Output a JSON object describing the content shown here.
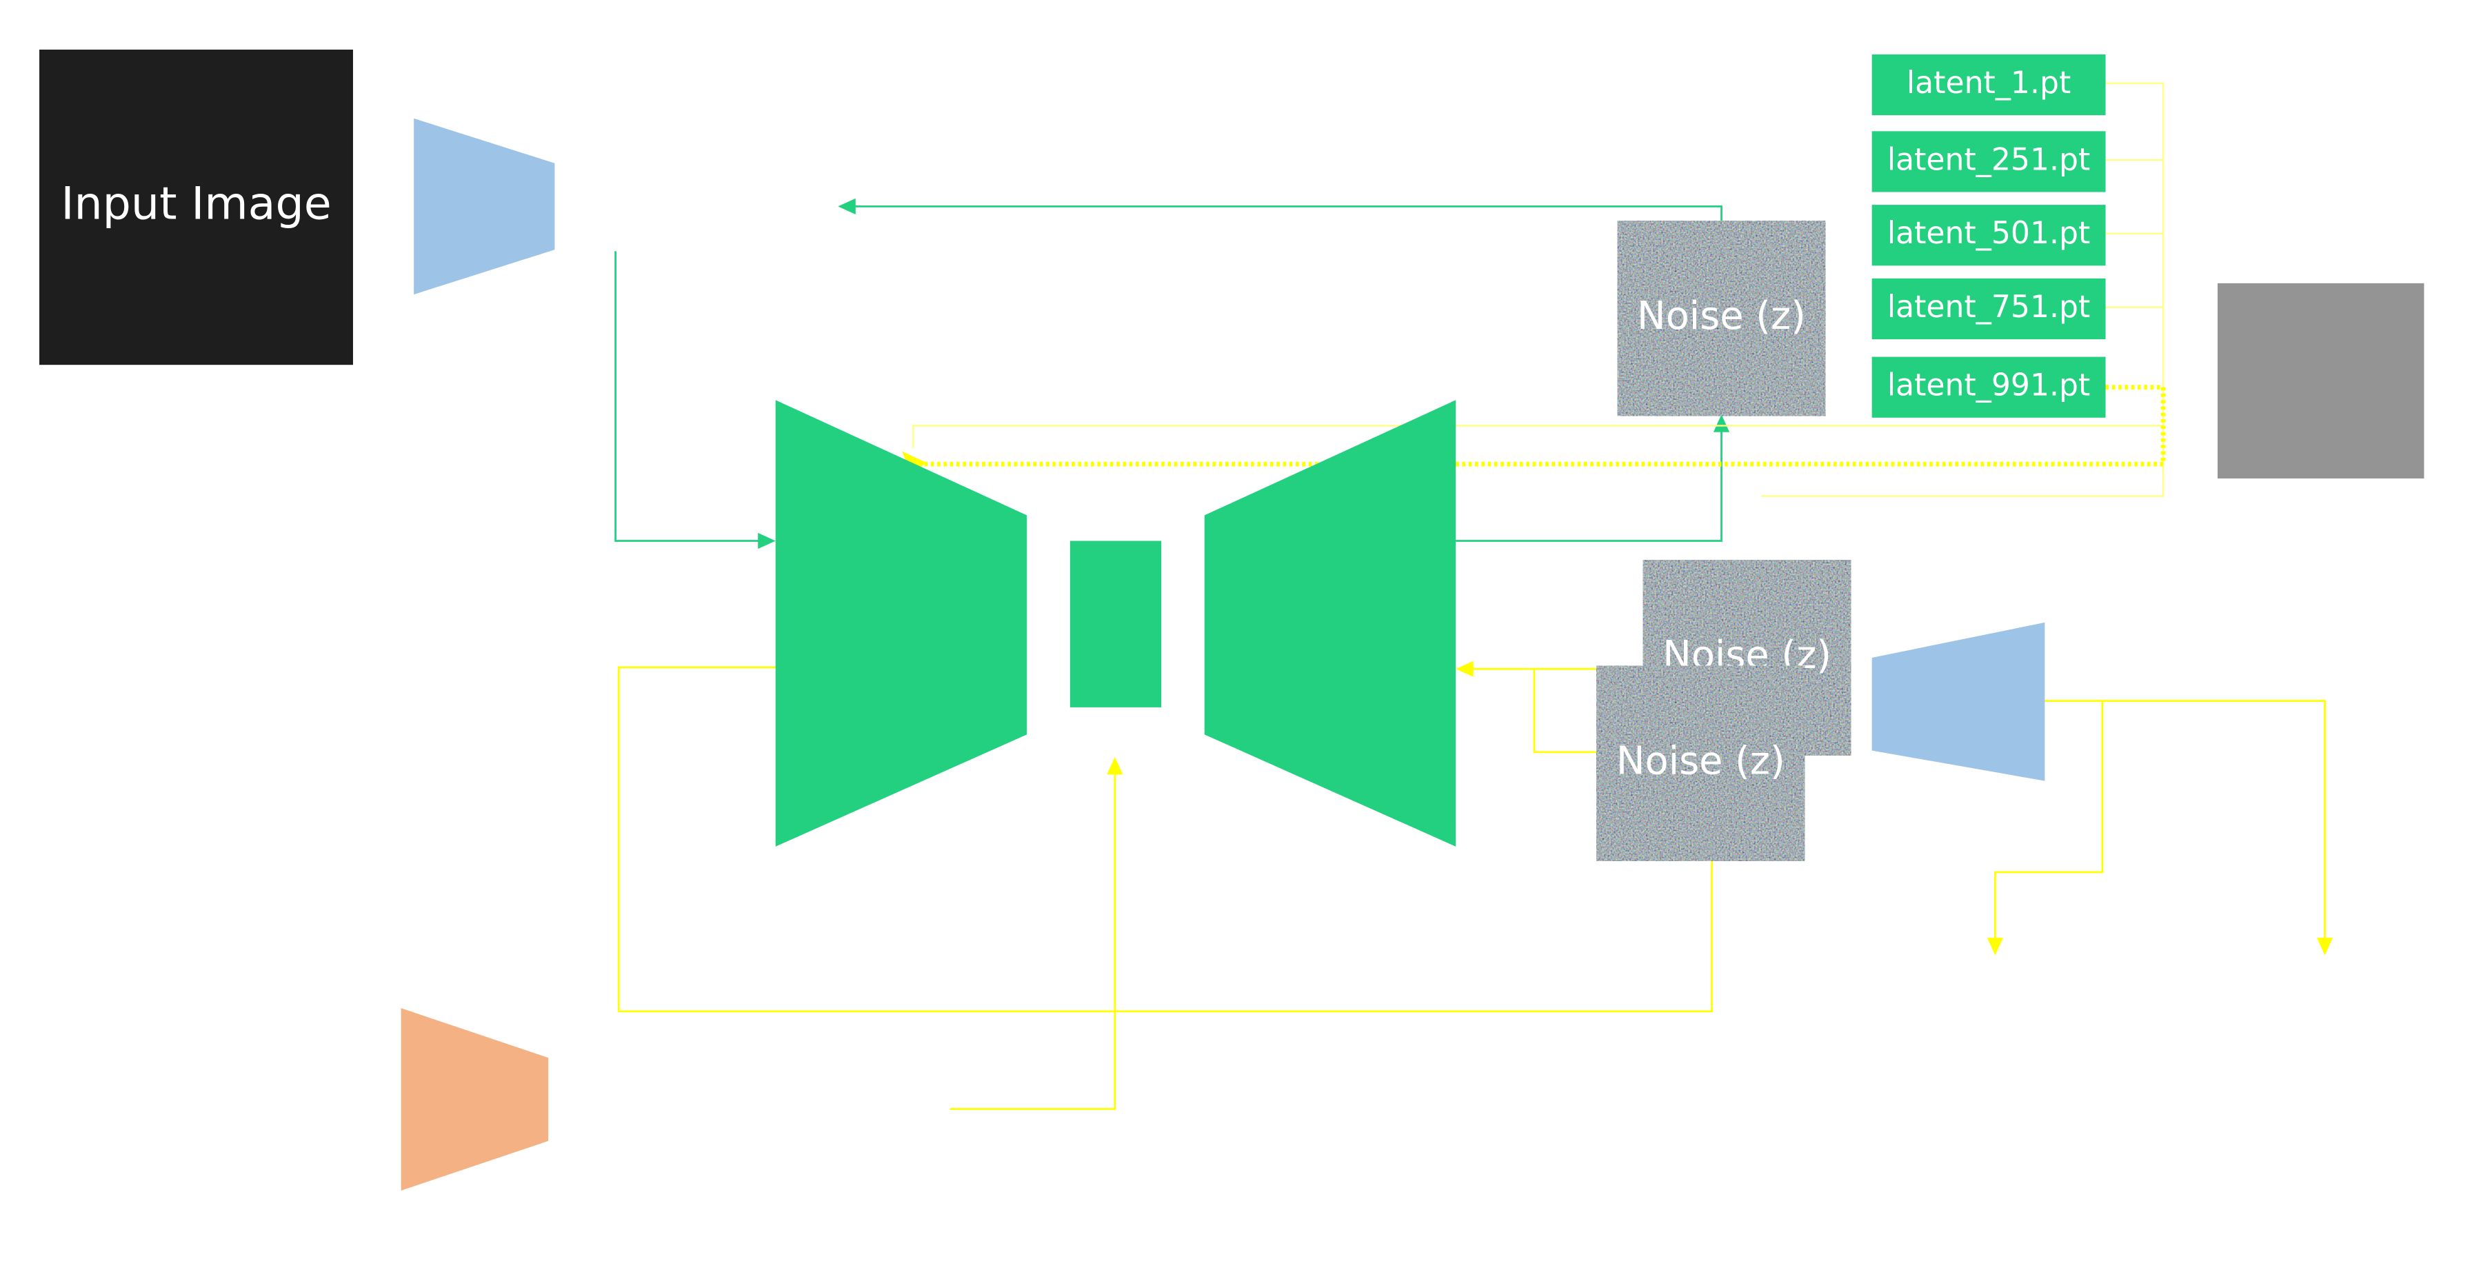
{
  "input_image": {
    "label": "Input Image"
  },
  "noise_blocks": [
    {
      "label": "Noise (z)"
    },
    {
      "label": "Noise (z)"
    },
    {
      "label": "Noise (z)"
    }
  ],
  "latent_files": [
    {
      "label": "latent_1.pt"
    },
    {
      "label": "latent_251.pt"
    },
    {
      "label": "latent_501.pt"
    },
    {
      "label": "latent_751.pt"
    },
    {
      "label": "latent_991.pt"
    }
  ],
  "colors": {
    "green": "#22d080",
    "yellow": "#ffff00",
    "blue": "#9dc3e6",
    "orange": "#f4b183",
    "dark": "#1e1e1e",
    "gray": "#949494"
  }
}
